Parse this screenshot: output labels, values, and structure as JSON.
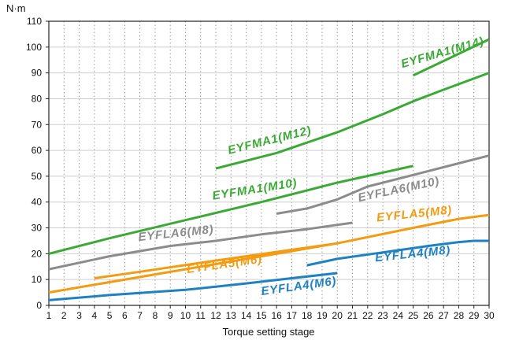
{
  "chart_data": {
    "type": "line",
    "xlabel": "Torque setting stage",
    "ylabel": "N·m",
    "xlim": [
      1,
      30
    ],
    "ylim": [
      0,
      110
    ],
    "x_ticks": [
      1,
      2,
      3,
      4,
      5,
      6,
      7,
      8,
      9,
      10,
      11,
      12,
      13,
      14,
      15,
      16,
      17,
      18,
      19,
      20,
      21,
      22,
      23,
      24,
      25,
      26,
      27,
      28,
      29,
      30
    ],
    "y_ticks": [
      0,
      10,
      20,
      30,
      40,
      50,
      60,
      70,
      80,
      90,
      100,
      110
    ],
    "grid": true,
    "colors": {
      "green": "#3aaa35",
      "gray": "#8c8c8c",
      "orange": "#f39c12",
      "blue": "#1f82c0"
    },
    "series": [
      {
        "name": "EYFMA1(M14)",
        "color": "green",
        "points": [
          [
            25,
            89
          ],
          [
            30,
            103
          ]
        ]
      },
      {
        "name": "EYFMA1(M12)",
        "color": "green",
        "points": [
          [
            12,
            53
          ],
          [
            16,
            59
          ],
          [
            20,
            67
          ],
          [
            23,
            74
          ],
          [
            25,
            79
          ],
          [
            27,
            83.5
          ],
          [
            30,
            90
          ]
        ]
      },
      {
        "name": "EYFMA1(M10)",
        "color": "green",
        "points": [
          [
            1,
            20
          ],
          [
            5,
            26
          ],
          [
            10,
            33
          ],
          [
            15,
            40
          ],
          [
            20,
            47.5
          ],
          [
            25,
            54
          ]
        ]
      },
      {
        "name": "EYFLA6(M10)",
        "color": "gray",
        "points": [
          [
            16,
            35.5
          ],
          [
            18,
            37.5
          ],
          [
            20,
            41
          ],
          [
            22,
            46
          ],
          [
            25,
            50.5
          ],
          [
            28,
            55
          ],
          [
            30,
            58
          ]
        ]
      },
      {
        "name": "EYFLA6(M8)",
        "color": "gray",
        "points": [
          [
            1,
            14
          ],
          [
            5,
            19
          ],
          [
            9,
            23
          ],
          [
            12,
            25
          ],
          [
            15,
            27.5
          ],
          [
            18,
            29.5
          ],
          [
            21,
            32
          ]
        ]
      },
      {
        "name": "EYFLA5(M8)",
        "color": "orange",
        "points": [
          [
            1,
            5
          ],
          [
            5,
            9
          ],
          [
            10,
            14
          ],
          [
            15,
            19
          ],
          [
            20,
            24
          ],
          [
            25,
            30
          ],
          [
            28,
            33.5
          ],
          [
            30,
            35
          ]
        ]
      },
      {
        "name": "EYFLA5(M6)",
        "color": "orange",
        "points": [
          [
            4,
            10.5
          ],
          [
            7,
            13
          ],
          [
            11,
            16.5
          ],
          [
            14,
            19
          ],
          [
            17,
            21.5
          ],
          [
            20,
            24
          ]
        ]
      },
      {
        "name": "EYFLA4(M8)",
        "color": "blue",
        "points": [
          [
            18,
            15.5
          ],
          [
            20,
            18
          ],
          [
            23,
            20.5
          ],
          [
            26,
            23
          ],
          [
            28,
            24.5
          ],
          [
            29,
            25
          ],
          [
            30,
            25
          ]
        ]
      },
      {
        "name": "EYFLA4(M6)",
        "color": "blue",
        "points": [
          [
            1,
            2
          ],
          [
            5,
            4
          ],
          [
            10,
            6
          ],
          [
            14,
            8.5
          ],
          [
            17,
            10.5
          ],
          [
            20,
            12.5
          ]
        ]
      }
    ],
    "annotations": [
      {
        "text": "EYFMA1(M14)",
        "color": "green",
        "x": 27.0,
        "y": 96.5,
        "angle": -16
      },
      {
        "text": "EYFMA1(M12)",
        "color": "green",
        "x": 15.6,
        "y": 62.5,
        "angle": -14
      },
      {
        "text": "EYFMA1(M10)",
        "color": "green",
        "x": 14.6,
        "y": 43.5,
        "angle": -9
      },
      {
        "text": "EYFLA6(M10)",
        "color": "gray",
        "x": 24.1,
        "y": 43.5,
        "angle": -12
      },
      {
        "text": "EYFLA6(M8)",
        "color": "gray",
        "x": 9.4,
        "y": 26.5,
        "angle": -6
      },
      {
        "text": "EYFLA5(M8)",
        "color": "orange",
        "x": 25.1,
        "y": 34.0,
        "angle": -6
      },
      {
        "text": "EYFLA5(M6)",
        "color": "orange",
        "x": 12.6,
        "y": 14.5,
        "angle": -8
      },
      {
        "text": "EYFLA4(M8)",
        "color": "blue",
        "x": 25.0,
        "y": 18.5,
        "angle": -6
      },
      {
        "text": "EYFLA4(M6)",
        "color": "blue",
        "x": 17.5,
        "y": 6.0,
        "angle": -8
      }
    ]
  }
}
